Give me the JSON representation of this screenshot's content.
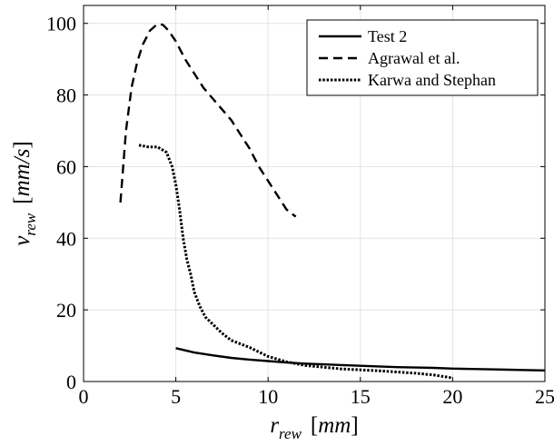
{
  "chart_data": {
    "type": "line",
    "xlabel": "r_rew [mm]",
    "ylabel": "v_rew [mm/s]",
    "xlim": [
      0,
      25
    ],
    "ylim": [
      0,
      105
    ],
    "xticks": [
      0,
      5,
      10,
      15,
      20,
      25
    ],
    "yticks": [
      0,
      20,
      40,
      60,
      80,
      100
    ],
    "grid": true,
    "legend_position": "top-right",
    "series": [
      {
        "name": "Test 2",
        "style": "solid",
        "x": [
          5,
          6,
          7,
          8,
          9,
          10,
          11,
          12,
          13,
          14,
          15,
          16,
          17,
          18,
          19,
          20,
          21,
          22,
          23,
          24,
          25
        ],
        "y": [
          9.3,
          8.1,
          7.3,
          6.6,
          6.1,
          5.7,
          5.3,
          5.0,
          4.8,
          4.6,
          4.4,
          4.2,
          4.0,
          3.9,
          3.8,
          3.6,
          3.5,
          3.4,
          3.3,
          3.2,
          3.1
        ]
      },
      {
        "name": "Agrawal et al.",
        "style": "dashed",
        "x": [
          2.0,
          2.3,
          2.6,
          2.9,
          3.2,
          3.6,
          4.0,
          4.3,
          4.6,
          5.0,
          5.5,
          6.0,
          6.5,
          7.0,
          7.5,
          8.0,
          8.5,
          9.0,
          9.5,
          10.0,
          10.5,
          11.0,
          11.5
        ],
        "y": [
          50,
          70,
          82,
          89,
          94,
          98,
          99.8,
          99.6,
          98,
          95,
          90,
          86,
          82,
          79,
          76,
          73,
          69,
          65,
          60,
          56,
          52,
          48,
          46
        ]
      },
      {
        "name": "Karwa and Stephan",
        "style": "dotted",
        "x": [
          3.0,
          3.5,
          4.0,
          4.5,
          4.8,
          5.0,
          5.2,
          5.4,
          5.6,
          5.8,
          6.0,
          6.3,
          6.6,
          7.0,
          7.5,
          8.0,
          9.0,
          10.0,
          11.0,
          12.0,
          14.0,
          16.0,
          18.0,
          19.0,
          20.0
        ],
        "y": [
          66,
          65.5,
          65.5,
          64,
          60,
          55,
          48,
          40,
          34,
          30,
          25,
          21,
          18,
          16,
          13.5,
          11.5,
          9.5,
          7,
          5.5,
          4.5,
          3.5,
          3.0,
          2.3,
          1.8,
          1.0
        ]
      }
    ]
  }
}
